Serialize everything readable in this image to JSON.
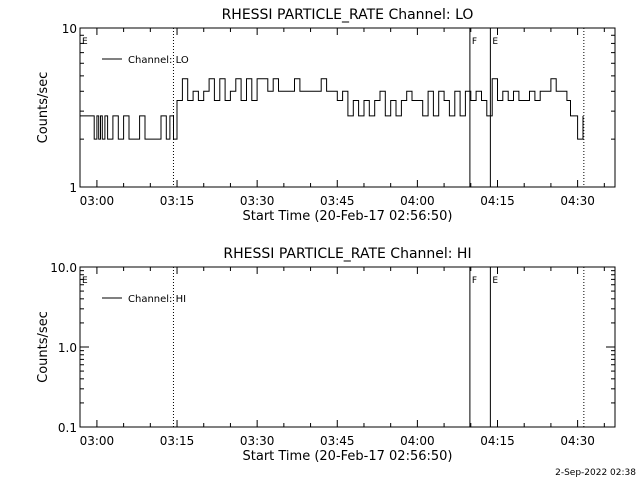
{
  "chart_data": [
    {
      "type": "line",
      "title": "RHESSI PARTICLE_RATE Channel: LO",
      "xlabel": "Start Time (20-Feb-17 02:56:50)",
      "ylabel": "Counts/sec",
      "y_scale": "log",
      "ylim": [
        1,
        10
      ],
      "xlim": [
        "02:56:50",
        "04:37:00"
      ],
      "x_tick_labels": [
        "03:00",
        "03:15",
        "03:30",
        "03:45",
        "04:00",
        "04:15",
        "04:30"
      ],
      "y_tick_labels": [
        "1",
        "10"
      ],
      "legend": {
        "position": "top-left",
        "entries": [
          "Channel: LO"
        ]
      },
      "grid": false,
      "flag_markers": [
        {
          "label": "E",
          "time": "02:56:50",
          "style": "solid"
        },
        {
          "label": "",
          "time": "03:14:20",
          "style": "dotted"
        },
        {
          "label": "F",
          "time": "04:09:50",
          "style": "solid"
        },
        {
          "label": "E",
          "time": "04:13:40",
          "style": "solid"
        },
        {
          "label": "",
          "time": "04:31:10",
          "style": "dotted"
        }
      ],
      "series": [
        {
          "name": "Channel: LO",
          "x": [
            "02:56:50",
            "02:59:00",
            "02:59:30",
            "03:00:00",
            "03:00:20",
            "03:00:40",
            "03:01:00",
            "03:01:30",
            "03:02:00",
            "03:03:00",
            "03:04:00",
            "03:05:00",
            "03:06:00",
            "03:07:00",
            "03:08:00",
            "03:09:00",
            "03:10:00",
            "03:11:00",
            "03:12:00",
            "03:13:00",
            "03:13:40",
            "03:14:20",
            "03:15:00",
            "03:16:00",
            "03:17:00",
            "03:18:00",
            "03:19:00",
            "03:20:00",
            "03:21:00",
            "03:22:00",
            "03:23:00",
            "03:24:00",
            "03:25:00",
            "03:26:00",
            "03:27:00",
            "03:28:00",
            "03:29:00",
            "03:30:00",
            "03:31:00",
            "03:32:00",
            "03:33:00",
            "03:34:00",
            "03:35:00",
            "03:36:00",
            "03:37:00",
            "03:38:00",
            "03:39:00",
            "03:40:00",
            "03:41:00",
            "03:42:00",
            "03:43:00",
            "03:44:00",
            "03:45:00",
            "03:46:00",
            "03:47:00",
            "03:48:00",
            "03:49:00",
            "03:50:00",
            "03:51:00",
            "03:52:00",
            "03:53:00",
            "03:54:00",
            "03:55:00",
            "03:56:00",
            "03:57:00",
            "03:58:00",
            "03:59:00",
            "04:00:00",
            "04:01:00",
            "04:02:00",
            "04:03:00",
            "04:04:00",
            "04:05:00",
            "04:06:00",
            "04:07:00",
            "04:08:00",
            "04:09:00",
            "04:10:00",
            "04:11:00",
            "04:12:00",
            "04:13:00",
            "04:14:00",
            "04:15:00",
            "04:16:00",
            "04:17:00",
            "04:18:00",
            "04:19:00",
            "04:20:00",
            "04:21:00",
            "04:22:00",
            "04:23:00",
            "04:24:00",
            "04:25:00",
            "04:26:00",
            "04:27:00",
            "04:28:00",
            "04:28:40",
            "04:29:20",
            "04:30:00",
            "04:31:00"
          ],
          "y": [
            2.8,
            2.8,
            2.0,
            2.8,
            2.0,
            2.8,
            2.0,
            2.8,
            2.0,
            2.8,
            2.0,
            2.8,
            2.0,
            2.0,
            2.8,
            2.0,
            2.0,
            2.0,
            2.8,
            2.0,
            2.8,
            2.0,
            3.5,
            4.8,
            3.5,
            4.0,
            3.5,
            4.0,
            4.8,
            3.5,
            4.8,
            3.5,
            4.0,
            4.8,
            3.5,
            4.8,
            3.5,
            4.8,
            4.8,
            4.0,
            4.8,
            4.0,
            4.0,
            4.0,
            4.8,
            4.0,
            4.0,
            4.0,
            4.0,
            4.8,
            4.0,
            4.0,
            3.5,
            4.0,
            2.8,
            3.5,
            2.8,
            3.5,
            2.8,
            3.5,
            4.0,
            2.8,
            3.5,
            2.8,
            3.5,
            4.0,
            3.5,
            3.5,
            2.8,
            4.0,
            2.8,
            4.0,
            3.5,
            2.8,
            4.0,
            2.8,
            4.0,
            3.5,
            4.0,
            3.5,
            2.8,
            4.8,
            3.5,
            4.0,
            3.5,
            4.0,
            3.5,
            3.5,
            4.0,
            3.5,
            4.0,
            4.0,
            4.8,
            4.0,
            4.0,
            3.5,
            2.8,
            2.8,
            2.0,
            2.8
          ]
        }
      ]
    },
    {
      "type": "line",
      "title": "RHESSI PARTICLE_RATE Channel: HI",
      "xlabel": "Start Time (20-Feb-17 02:56:50)",
      "ylabel": "Counts/sec",
      "y_scale": "log",
      "ylim": [
        0.1,
        10
      ],
      "xlim": [
        "02:56:50",
        "04:37:00"
      ],
      "x_tick_labels": [
        "03:00",
        "03:15",
        "03:30",
        "03:45",
        "04:00",
        "04:15",
        "04:30"
      ],
      "y_tick_labels": [
        "0.1",
        "1.0",
        "10.0"
      ],
      "legend": {
        "position": "top-left",
        "entries": [
          "Channel: HI"
        ]
      },
      "grid": false,
      "flag_markers": [
        {
          "label": "E",
          "time": "02:56:50",
          "style": "solid"
        },
        {
          "label": "",
          "time": "03:14:20",
          "style": "dotted"
        },
        {
          "label": "F",
          "time": "04:09:50",
          "style": "solid"
        },
        {
          "label": "E",
          "time": "04:13:40",
          "style": "solid"
        },
        {
          "label": "",
          "time": "04:31:10",
          "style": "dotted"
        }
      ],
      "series": [
        {
          "name": "Channel: HI",
          "x": [],
          "y": []
        }
      ]
    }
  ],
  "footer": {
    "date": "2-Sep-2022 02:38"
  }
}
